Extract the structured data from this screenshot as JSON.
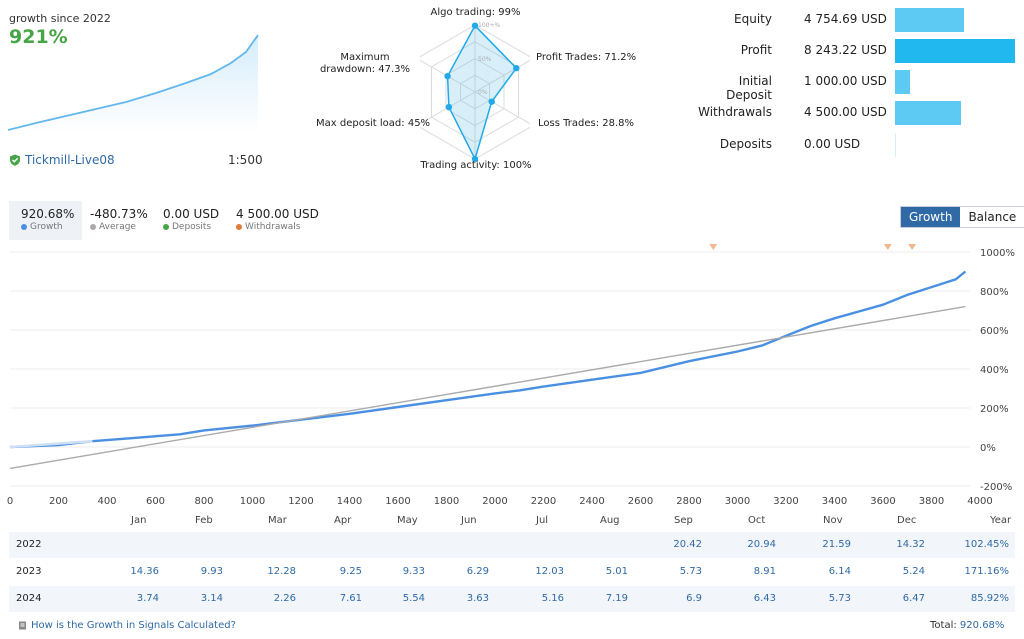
{
  "summary": {
    "growth_label": "growth since 2022",
    "growth_value": "921%",
    "account_name": "Tickmill-Live08",
    "leverage": "1:500"
  },
  "radar": {
    "axes": [
      {
        "label": "Algo trading: 99%",
        "value": 99
      },
      {
        "label": "Profit Trades: 71.2%",
        "value": 71.2
      },
      {
        "label": "Loss Trades: 28.8%",
        "value": 28.8
      },
      {
        "label": "Trading activity: 100%",
        "value": 100
      },
      {
        "label": "Max deposit load: 45%",
        "value": 45
      },
      {
        "label": "Maximum drawdown: 47.3%",
        "value": 47.3
      }
    ],
    "ring_labels": [
      "100+%",
      "50%",
      "0%"
    ]
  },
  "financials": [
    {
      "label": "Equity",
      "value": "4 754.69 USD",
      "amount": 4754.69
    },
    {
      "label": "Profit",
      "value": "8 243.22 USD",
      "amount": 8243.22
    },
    {
      "label": "Initial Deposit",
      "value": "1 000.00 USD",
      "amount": 1000.0
    },
    {
      "label": "Withdrawals",
      "value": "4 500.00 USD",
      "amount": 4500.0
    },
    {
      "label": "Deposits",
      "value": "0.00 USD",
      "amount": 0
    }
  ],
  "stats": [
    {
      "value": "920.68%",
      "label": "Growth",
      "color": "#4a90e2"
    },
    {
      "value": "-480.73%",
      "label": "Average",
      "color": "#aaaaaa"
    },
    {
      "value": "0.00 USD",
      "label": "Deposits",
      "color": "#47a447"
    },
    {
      "value": "4 500.00 USD",
      "label": "Withdrawals",
      "color": "#e07b39"
    }
  ],
  "toggle": {
    "growth": "Growth",
    "balance": "Balance"
  },
  "chart_data": {
    "type": "line",
    "xlim": [
      0,
      4000
    ],
    "ylim": [
      -200,
      1000
    ],
    "x_ticks": [
      0,
      200,
      400,
      600,
      800,
      1000,
      1200,
      1400,
      1600,
      1800,
      2000,
      2200,
      2400,
      2600,
      2800,
      3000,
      3200,
      3400,
      3600,
      3800,
      4000
    ],
    "y_ticks": [
      -200,
      0,
      200,
      400,
      600,
      800,
      1000
    ],
    "y_tick_labels": [
      "-200%",
      "0%",
      "200%",
      "400%",
      "600%",
      "800%",
      "1000%"
    ],
    "withdrawal_markers": [
      2900,
      3620,
      3720
    ],
    "series": [
      {
        "name": "Growth",
        "color": "#4a90e2",
        "x": [
          0,
          100,
          200,
          340,
          500,
          700,
          800,
          1000,
          1200,
          1400,
          1600,
          1800,
          2000,
          2100,
          2200,
          2400,
          2600,
          2800,
          3000,
          3100,
          3200,
          3300,
          3400,
          3500,
          3600,
          3700,
          3800,
          3900,
          3940
        ],
        "y": [
          0,
          5,
          10,
          30,
          45,
          65,
          85,
          110,
          140,
          170,
          205,
          240,
          275,
          290,
          310,
          345,
          380,
          440,
          490,
          520,
          570,
          620,
          660,
          695,
          730,
          780,
          820,
          860,
          900
        ]
      },
      {
        "name": "Average",
        "color": "#aaaaaa",
        "x": [
          0,
          3940
        ],
        "y": [
          -110,
          720
        ]
      }
    ]
  },
  "table": {
    "months": [
      "Jan",
      "Feb",
      "Mar",
      "Apr",
      "May",
      "Jun",
      "Jul",
      "Aug",
      "Sep",
      "Oct",
      "Nov",
      "Dec"
    ],
    "year_header": "Year",
    "rows": [
      {
        "year": "2022",
        "values": [
          "",
          "",
          "",
          "",
          "",
          "",
          "",
          "",
          "20.42",
          "20.94",
          "21.59",
          "14.32"
        ],
        "total": "102.45%"
      },
      {
        "year": "2023",
        "values": [
          "14.36",
          "9.93",
          "12.28",
          "9.25",
          "9.33",
          "6.29",
          "12.03",
          "5.01",
          "5.73",
          "8.91",
          "6.14",
          "5.24"
        ],
        "total": "171.16%"
      },
      {
        "year": "2024",
        "values": [
          "3.74",
          "3.14",
          "2.26",
          "7.61",
          "5.54",
          "3.63",
          "5.16",
          "7.19",
          "6.9",
          "6.43",
          "5.73",
          "6.47"
        ],
        "total": "85.92%"
      }
    ]
  },
  "footer": {
    "link": "How is the Growth in Signals Calculated?",
    "total_label": "Total:",
    "total_value": "920.68%"
  }
}
